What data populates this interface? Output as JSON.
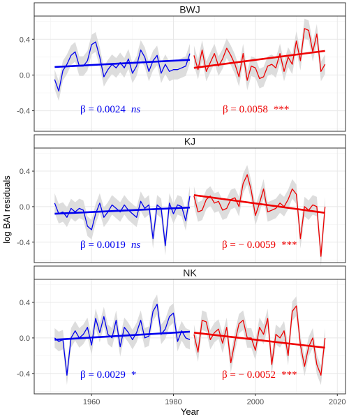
{
  "chart_data": {
    "type": "line",
    "xlabel": "Year",
    "ylabel": "log BAI residuals",
    "xlim": [
      1946,
      2022
    ],
    "ylim": [
      -0.63,
      0.66
    ],
    "x_ticks": [
      1960,
      1980,
      2000,
      2020
    ],
    "x_tick_labels": [
      "1960",
      "1980",
      "2000",
      "2020"
    ],
    "y_ticks": [
      -0.4,
      0.0,
      0.4
    ],
    "y_tick_labels": [
      "-0.4",
      "0.0",
      "0.4"
    ],
    "grid": true,
    "colors": {
      "early": "#0000ee",
      "late": "#ee0000",
      "ribbon": "#d9d9d9"
    },
    "panels": [
      {
        "name": "BWJ",
        "series": [
          {
            "color": "#0000ee",
            "x": [
              1951,
              1952,
              1953,
              1954,
              1955,
              1956,
              1957,
              1958,
              1959,
              1960,
              1961,
              1962,
              1963,
              1964,
              1965,
              1966,
              1967,
              1968,
              1969,
              1970,
              1971,
              1972,
              1973,
              1974,
              1975,
              1976,
              1977,
              1978,
              1979,
              1980,
              1981,
              1982,
              1983,
              1984
            ],
            "y": [
              -0.05,
              -0.18,
              0.05,
              0.12,
              0.22,
              0.26,
              0.1,
              0.1,
              0.16,
              0.34,
              0.37,
              0.2,
              -0.02,
              0.06,
              0.12,
              0.08,
              0.14,
              0.08,
              0.18,
              0.02,
              0.1,
              0.28,
              0.2,
              0.04,
              0.16,
              0.22,
              0.02,
              0.12,
              0.04,
              0.06,
              0.06,
              0.08,
              0.1,
              0.24
            ],
            "trend": {
              "x": [
                1951,
                1984
              ],
              "y": [
                0.09,
                0.17
              ]
            },
            "beta": "β = 0.0024",
            "sig": "ns"
          },
          {
            "color": "#ee0000",
            "x": [
              1985,
              1986,
              1987,
              1988,
              1989,
              1990,
              1991,
              1992,
              1993,
              1994,
              1995,
              1996,
              1997,
              1998,
              1999,
              2000,
              2001,
              2002,
              2003,
              2004,
              2005,
              2006,
              2007,
              2008,
              2009,
              2010,
              2011,
              2012,
              2013,
              2014,
              2015,
              2016,
              2017
            ],
            "y": [
              0.22,
              0.06,
              0.28,
              0.04,
              0.14,
              0.24,
              0.1,
              0.18,
              0.3,
              0.22,
              0.12,
              -0.02,
              0.24,
              -0.06,
              0.1,
              0.08,
              -0.04,
              -0.02,
              0.1,
              0.12,
              0.08,
              0.24,
              0.04,
              0.2,
              0.12,
              0.38,
              0.16,
              0.52,
              0.5,
              0.26,
              0.46,
              0.04,
              0.12
            ],
            "trend": {
              "x": [
                1985,
                2017
              ],
              "y": [
                0.08,
                0.27
              ]
            },
            "beta": "β = 0.0058",
            "sig": "***"
          }
        ]
      },
      {
        "name": "KJ",
        "series": [
          {
            "color": "#0000ee",
            "x": [
              1951,
              1952,
              1953,
              1954,
              1955,
              1956,
              1957,
              1958,
              1959,
              1960,
              1961,
              1962,
              1963,
              1964,
              1965,
              1966,
              1967,
              1968,
              1969,
              1970,
              1971,
              1972,
              1973,
              1974,
              1975,
              1976,
              1977,
              1978,
              1979,
              1980,
              1981,
              1982,
              1983,
              1984
            ],
            "y": [
              0.04,
              -0.08,
              -0.06,
              -0.12,
              -0.02,
              -0.06,
              -0.02,
              -0.04,
              -0.22,
              -0.26,
              -0.08,
              0.04,
              -0.12,
              -0.06,
              0.02,
              -0.02,
              -0.06,
              0.02,
              -0.04,
              -0.08,
              -0.12,
              0.06,
              -0.02,
              0.02,
              -0.36,
              0.02,
              -0.02,
              -0.44,
              0.04,
              -0.08,
              0.02,
              0.0,
              -0.16,
              0.12
            ],
            "trend": {
              "x": [
                1951,
                1984
              ],
              "y": [
                -0.08,
                -0.01
              ]
            },
            "beta": "β = 0.0019",
            "sig": "ns"
          },
          {
            "color": "#ee0000",
            "x": [
              1985,
              1986,
              1987,
              1988,
              1989,
              1990,
              1991,
              1992,
              1993,
              1994,
              1995,
              1996,
              1997,
              1998,
              1999,
              2000,
              2001,
              2002,
              2003,
              2004,
              2005,
              2006,
              2007,
              2008,
              2009,
              2010,
              2011,
              2012,
              2013,
              2014,
              2015,
              2016,
              2017
            ],
            "y": [
              0.12,
              -0.06,
              -0.04,
              0.08,
              0.12,
              0.04,
              0.06,
              -0.04,
              -0.02,
              0.08,
              0.1,
              0.0,
              0.26,
              0.36,
              0.18,
              -0.1,
              0.04,
              0.2,
              -0.06,
              -0.04,
              -0.02,
              0.04,
              0.0,
              0.08,
              0.2,
              0.14,
              -0.36,
              0.0,
              -0.04,
              0.02,
              0.0,
              -0.56,
              0.0
            ],
            "trend": {
              "x": [
                1985,
                2017
              ],
              "y": [
                0.13,
                -0.07
              ]
            },
            "beta": "β = − 0.0059",
            "sig": "***"
          }
        ]
      },
      {
        "name": "NK",
        "series": [
          {
            "color": "#0000ee",
            "x": [
              1951,
              1952,
              1953,
              1954,
              1955,
              1956,
              1957,
              1958,
              1959,
              1960,
              1961,
              1962,
              1963,
              1964,
              1965,
              1966,
              1967,
              1968,
              1969,
              1970,
              1971,
              1972,
              1973,
              1974,
              1975,
              1976,
              1977,
              1978,
              1979,
              1980,
              1981,
              1982,
              1983,
              1984
            ],
            "y": [
              0.0,
              -0.04,
              -0.02,
              -0.42,
              0.0,
              0.08,
              0.0,
              0.04,
              0.12,
              -0.08,
              0.22,
              0.06,
              0.24,
              0.04,
              0.0,
              0.2,
              -0.1,
              0.12,
              0.06,
              -0.02,
              0.06,
              0.2,
              0.0,
              0.02,
              0.3,
              0.38,
              0.04,
              0.1,
              0.24,
              0.28,
              -0.04,
              0.08,
              0.0,
              -0.02
            ],
            "trend": {
              "x": [
                1951,
                1984
              ],
              "y": [
                -0.02,
                0.07
              ]
            },
            "beta": "β = 0.0029",
            "sig": "*"
          },
          {
            "color": "#ee0000",
            "x": [
              1985,
              1986,
              1987,
              1988,
              1989,
              1990,
              1991,
              1992,
              1993,
              1994,
              1995,
              1996,
              1997,
              1998,
              1999,
              2000,
              2001,
              2002,
              2003,
              2004,
              2005,
              2006,
              2007,
              2008,
              2009,
              2010,
              2011,
              2012,
              2013,
              2014,
              2015,
              2016,
              2017
            ],
            "y": [
              0.04,
              -0.16,
              0.2,
              0.18,
              -0.02,
              0.06,
              0.1,
              -0.06,
              0.12,
              -0.28,
              -0.04,
              0.16,
              0.2,
              0.0,
              0.0,
              -0.14,
              0.12,
              0.04,
              0.22,
              -0.3,
              0.04,
              0.0,
              0.08,
              -0.2,
              0.3,
              0.36,
              -0.08,
              -0.32,
              -0.1,
              0.0,
              -0.3,
              -0.42,
              0.0
            ],
            "trend": {
              "x": [
                1985,
                2017
              ],
              "y": [
                0.06,
                -0.11
              ]
            },
            "beta": "β = − 0.0052",
            "sig": "***"
          }
        ]
      }
    ]
  }
}
